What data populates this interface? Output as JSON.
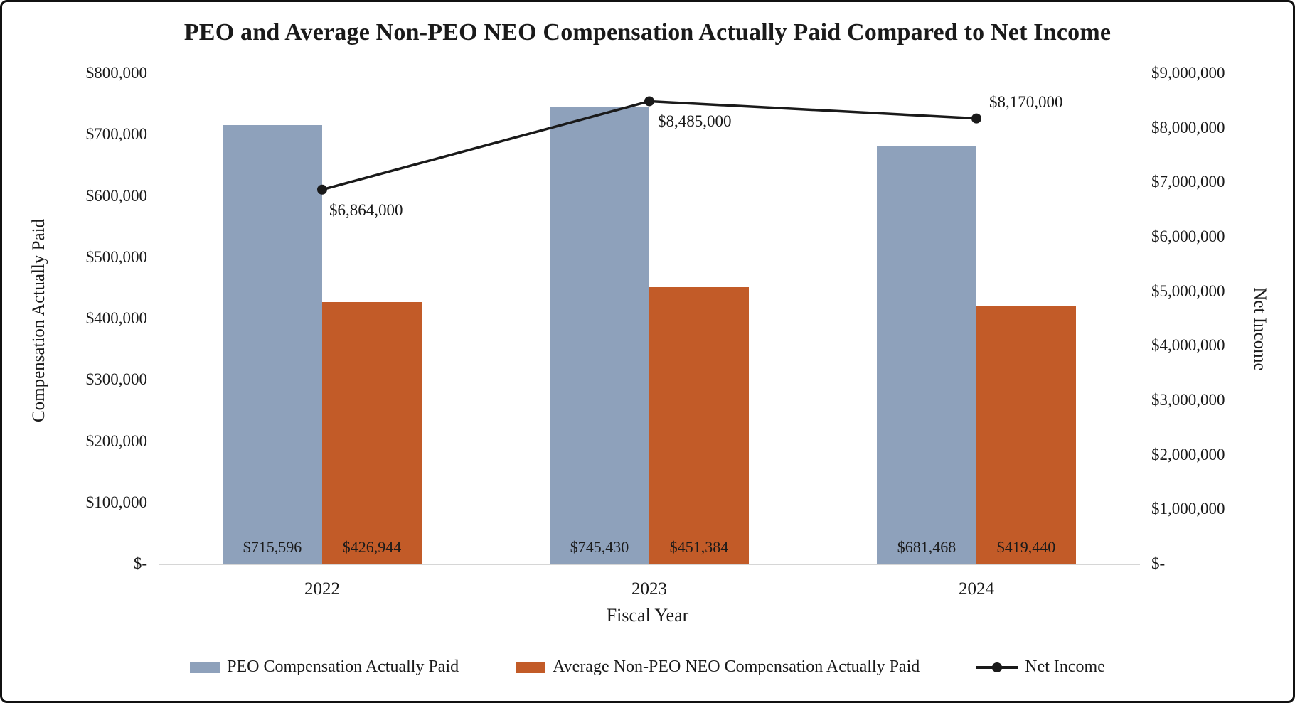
{
  "title": "PEO and Average Non-PEO NEO Compensation Actually Paid Compared to Net Income",
  "chart_data": {
    "type": "bar",
    "subtype": "grouped-bars-with-line",
    "categories": [
      "2022",
      "2023",
      "2024"
    ],
    "series": [
      {
        "name": "PEO Compensation Actually Paid",
        "type": "bar",
        "axis": "left",
        "color": "#8EA1BB",
        "values": [
          715596,
          745430,
          681468
        ],
        "labels": [
          "$715,596",
          "$745,430",
          "$681,468"
        ]
      },
      {
        "name": "Average Non-PEO NEO Compensation Actually Paid",
        "type": "bar",
        "axis": "left",
        "color": "#C25B28",
        "values": [
          426944,
          451384,
          419440
        ],
        "labels": [
          "$426,944",
          "$451,384",
          "$419,440"
        ]
      },
      {
        "name": "Net Income",
        "type": "line",
        "axis": "right",
        "color": "#1a1a1a",
        "values": [
          6864000,
          8485000,
          8170000
        ],
        "labels": [
          "$6,864,000",
          "$8,485,000",
          "$8,170,000"
        ]
      }
    ],
    "xlabel": "Fiscal Year",
    "left_axis": {
      "label": "Compensation Actually Paid",
      "min": 0,
      "max": 800000,
      "step": 100000,
      "ticks": [
        "$-",
        "$100,000",
        "$200,000",
        "$300,000",
        "$400,000",
        "$500,000",
        "$600,000",
        "$700,000",
        "$800,000"
      ]
    },
    "right_axis": {
      "label": "Net Income",
      "min": 0,
      "max": 9000000,
      "step": 1000000,
      "ticks": [
        "$-",
        "$1,000,000",
        "$2,000,000",
        "$3,000,000",
        "$4,000,000",
        "$5,000,000",
        "$6,000,000",
        "$7,000,000",
        "$8,000,000",
        "$9,000,000"
      ]
    },
    "legend_position": "bottom",
    "grid": false
  }
}
